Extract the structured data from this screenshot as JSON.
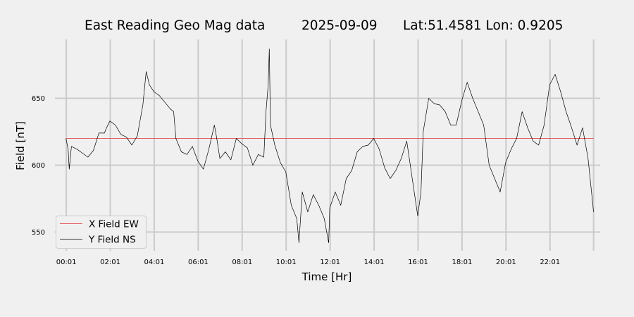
{
  "chart_data": {
    "type": "line",
    "title_parts": [
      "East Reading Geo Mag data",
      "2025-09-09",
      "Lat:51.4581  Lon: 0.9205"
    ],
    "xlabel": "Time  [Hr]",
    "ylabel": "Field  [nT]",
    "x_range_hours": [
      -0.5,
      24.3
    ],
    "ylim": [
      536,
      694
    ],
    "x_ticks": [
      {
        "hour": 0.0167,
        "label": "00:01"
      },
      {
        "hour": 2.0167,
        "label": "02:01"
      },
      {
        "hour": 4.0167,
        "label": "04:01"
      },
      {
        "hour": 6.0167,
        "label": "06:01"
      },
      {
        "hour": 8.0167,
        "label": "08:01"
      },
      {
        "hour": 10.0167,
        "label": "10:01"
      },
      {
        "hour": 12.0167,
        "label": "12:01"
      },
      {
        "hour": 14.0167,
        "label": "14:01"
      },
      {
        "hour": 16.0167,
        "label": "16:01"
      },
      {
        "hour": 18.0167,
        "label": "18:01"
      },
      {
        "hour": 20.0167,
        "label": "20:01"
      },
      {
        "hour": 22.0167,
        "label": "22:01"
      },
      {
        "hour": 24.0,
        "label": ""
      }
    ],
    "y_ticks": [
      {
        "value": 550,
        "label": "550"
      },
      {
        "value": 600,
        "label": "600"
      },
      {
        "value": 650,
        "label": "650"
      }
    ],
    "grid": true,
    "legend_position": "lower-left",
    "series": [
      {
        "name": "X Field EW",
        "color": "#e03030",
        "points": [
          [
            0.0,
            620
          ],
          [
            24.0,
            620
          ]
        ]
      },
      {
        "name": "Y Field NS",
        "color": "#000000",
        "points": [
          [
            0.0,
            620
          ],
          [
            0.1,
            612
          ],
          [
            0.15,
            597
          ],
          [
            0.25,
            614
          ],
          [
            0.5,
            612
          ],
          [
            0.75,
            609
          ],
          [
            1.0,
            606
          ],
          [
            1.25,
            611
          ],
          [
            1.5,
            624
          ],
          [
            1.75,
            624
          ],
          [
            1.85,
            628
          ],
          [
            2.0,
            633
          ],
          [
            2.25,
            630
          ],
          [
            2.5,
            623
          ],
          [
            2.75,
            621
          ],
          [
            3.0,
            615
          ],
          [
            3.25,
            622
          ],
          [
            3.5,
            645
          ],
          [
            3.65,
            670
          ],
          [
            3.8,
            660
          ],
          [
            4.0,
            655
          ],
          [
            4.25,
            652
          ],
          [
            4.5,
            647
          ],
          [
            4.75,
            642
          ],
          [
            4.9,
            640
          ],
          [
            5.0,
            620
          ],
          [
            5.25,
            610
          ],
          [
            5.5,
            608
          ],
          [
            5.75,
            614
          ],
          [
            6.0,
            603
          ],
          [
            6.25,
            597
          ],
          [
            6.5,
            612
          ],
          [
            6.75,
            630
          ],
          [
            6.85,
            621
          ],
          [
            7.0,
            605
          ],
          [
            7.25,
            610
          ],
          [
            7.5,
            604
          ],
          [
            7.75,
            620
          ],
          [
            8.0,
            616
          ],
          [
            8.25,
            613
          ],
          [
            8.5,
            600
          ],
          [
            8.75,
            608
          ],
          [
            9.0,
            606
          ],
          [
            9.1,
            640
          ],
          [
            9.2,
            660
          ],
          [
            9.25,
            687
          ],
          [
            9.3,
            630
          ],
          [
            9.5,
            615
          ],
          [
            9.75,
            602
          ],
          [
            10.0,
            595
          ],
          [
            10.25,
            570
          ],
          [
            10.5,
            560
          ],
          [
            10.6,
            542
          ],
          [
            10.75,
            580
          ],
          [
            11.0,
            565
          ],
          [
            11.25,
            578
          ],
          [
            11.5,
            570
          ],
          [
            11.75,
            560
          ],
          [
            11.95,
            542
          ],
          [
            12.0,
            568
          ],
          [
            12.25,
            580
          ],
          [
            12.5,
            570
          ],
          [
            12.75,
            590
          ],
          [
            13.0,
            596
          ],
          [
            13.25,
            610
          ],
          [
            13.5,
            614
          ],
          [
            13.75,
            615
          ],
          [
            14.0,
            620
          ],
          [
            14.25,
            612
          ],
          [
            14.5,
            598
          ],
          [
            14.75,
            590
          ],
          [
            15.0,
            596
          ],
          [
            15.25,
            605
          ],
          [
            15.5,
            618
          ],
          [
            15.75,
            590
          ],
          [
            16.0,
            562
          ],
          [
            16.15,
            580
          ],
          [
            16.25,
            625
          ],
          [
            16.5,
            650
          ],
          [
            16.75,
            646
          ],
          [
            17.0,
            645
          ],
          [
            17.25,
            640
          ],
          [
            17.5,
            630
          ],
          [
            17.75,
            630
          ],
          [
            18.0,
            648
          ],
          [
            18.25,
            662
          ],
          [
            18.5,
            650
          ],
          [
            18.75,
            640
          ],
          [
            19.0,
            630
          ],
          [
            19.25,
            600
          ],
          [
            19.5,
            590
          ],
          [
            19.75,
            580
          ],
          [
            20.0,
            602
          ],
          [
            20.25,
            612
          ],
          [
            20.5,
            620
          ],
          [
            20.75,
            640
          ],
          [
            21.0,
            628
          ],
          [
            21.25,
            618
          ],
          [
            21.5,
            615
          ],
          [
            21.75,
            630
          ],
          [
            22.0,
            660
          ],
          [
            22.25,
            668
          ],
          [
            22.5,
            655
          ],
          [
            22.75,
            640
          ],
          [
            23.0,
            628
          ],
          [
            23.25,
            615
          ],
          [
            23.5,
            628
          ],
          [
            23.75,
            605
          ],
          [
            24.0,
            565
          ]
        ]
      }
    ]
  }
}
